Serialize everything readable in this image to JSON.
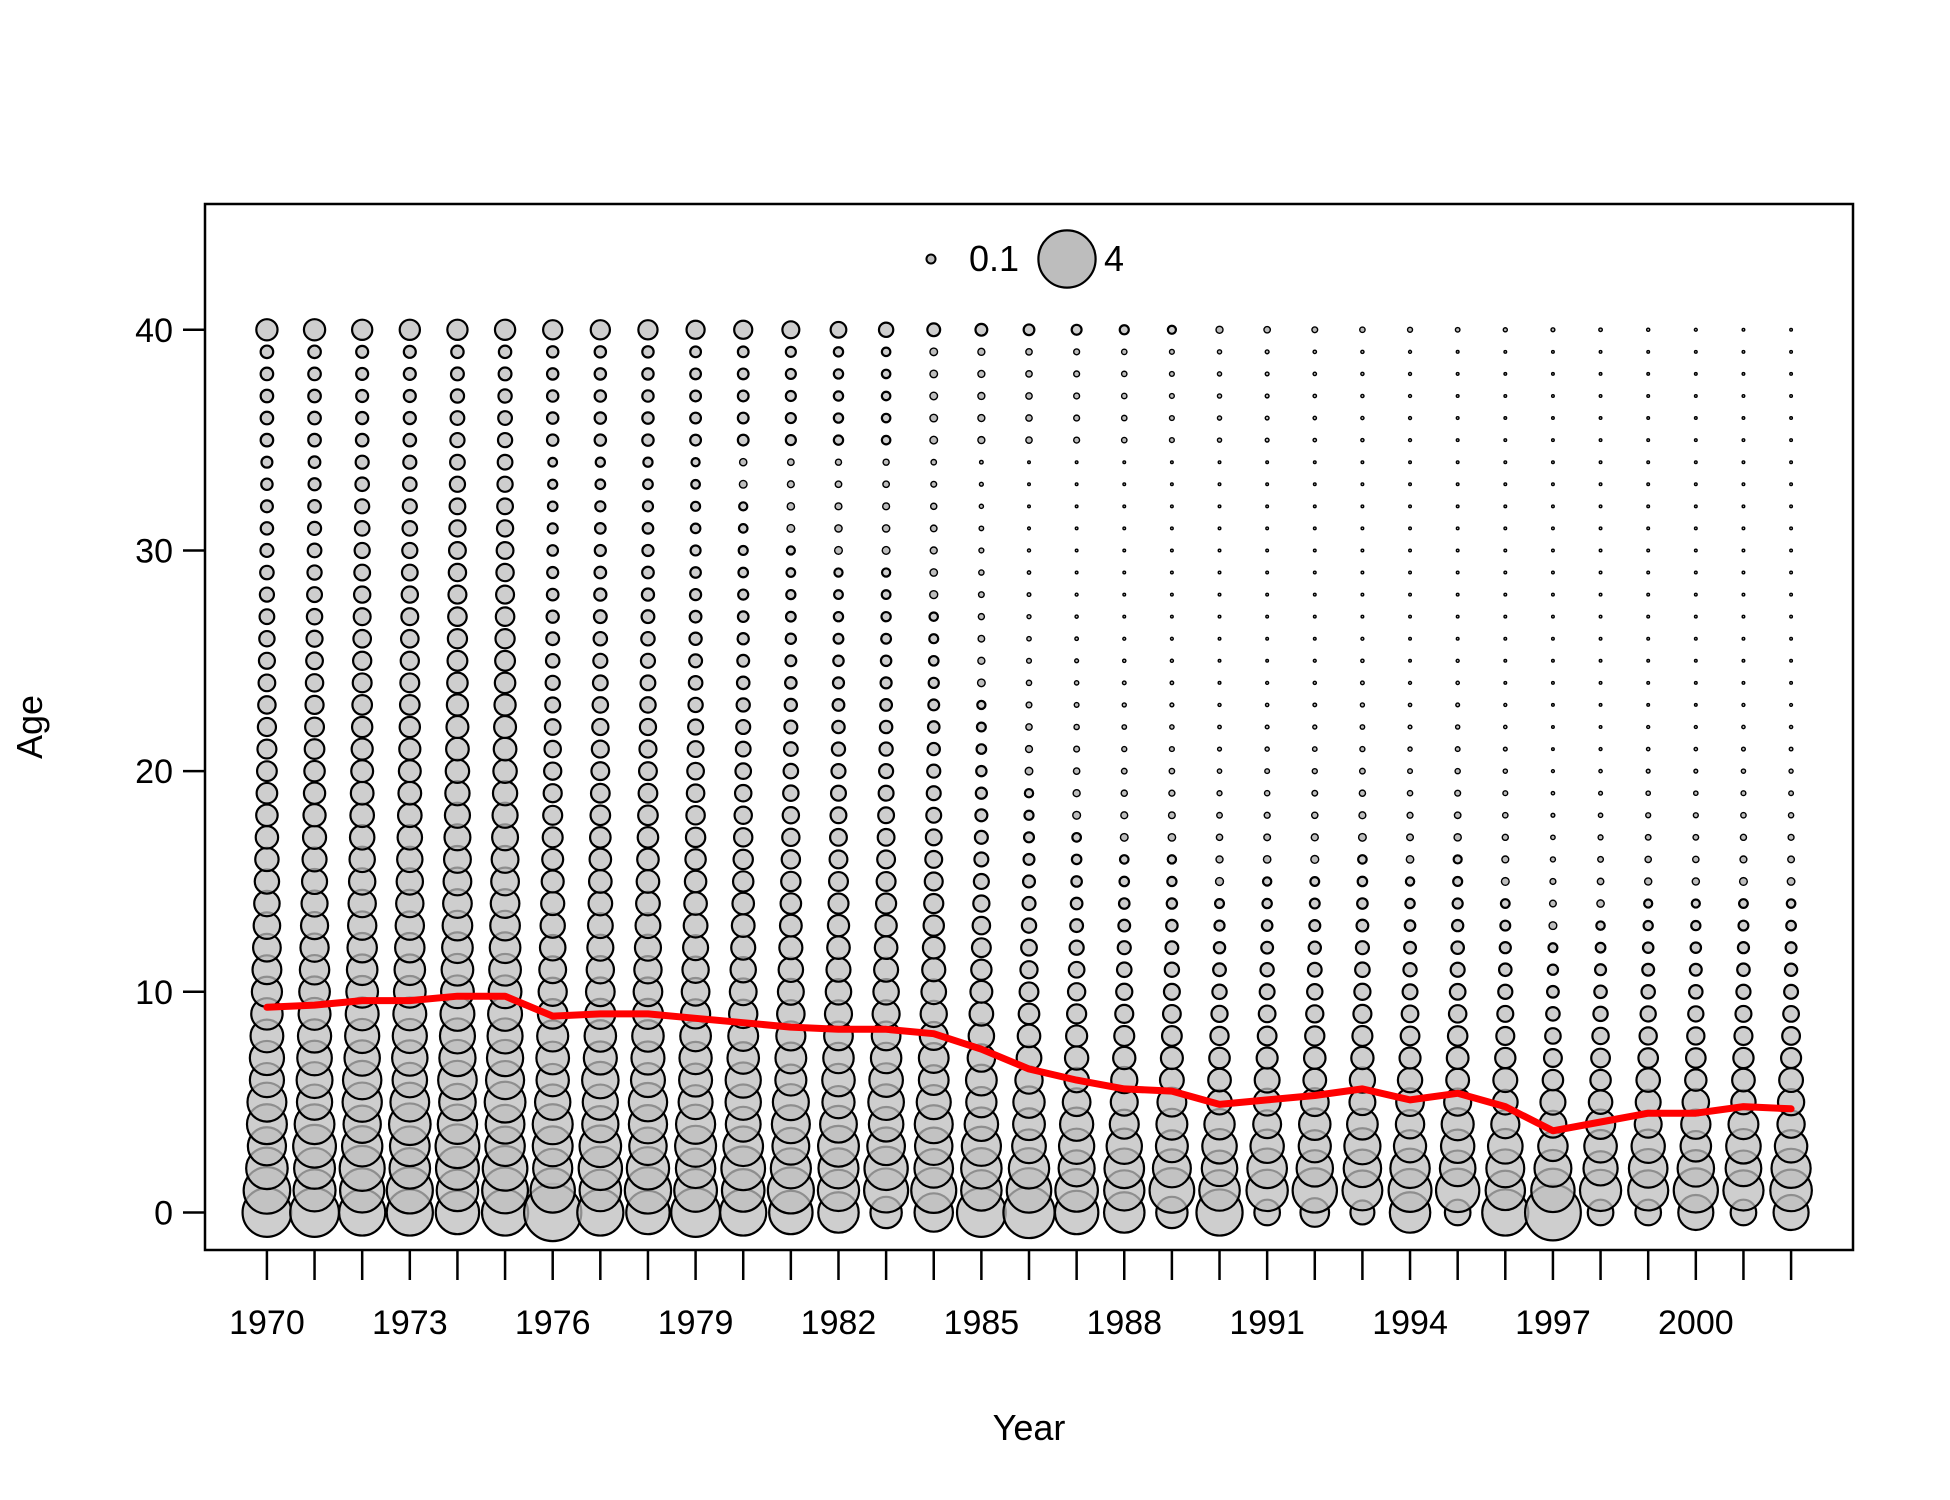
{
  "chart_data": {
    "type": "scatter",
    "subtype": "bubble",
    "title": "",
    "xlabel": "Year",
    "ylabel": "Age",
    "xlim": [
      1968.7,
      2003.3
    ],
    "ylim": [
      -1.7,
      45.7
    ],
    "x_ticks": [
      1970,
      1973,
      1976,
      1979,
      1982,
      1985,
      1988,
      1991,
      1994,
      1997,
      2000
    ],
    "y_ticks": [
      0,
      10,
      20,
      30,
      40
    ],
    "grid": false,
    "legend": {
      "position": "top-center",
      "entries": [
        {
          "label": "0.1",
          "value": 0.1
        },
        {
          "label": "4",
          "value": 4
        }
      ]
    },
    "years": [
      1970,
      1971,
      1972,
      1973,
      1974,
      1975,
      1976,
      1977,
      1978,
      1979,
      1980,
      1981,
      1982,
      1983,
      1984,
      1985,
      1986,
      1987,
      1988,
      1989,
      1990,
      1991,
      1992,
      1993,
      1994,
      1995,
      1996,
      1997,
      1998,
      1999,
      2000,
      2001,
      2002
    ],
    "ages": [
      0,
      1,
      2,
      3,
      4,
      5,
      6,
      7,
      8,
      9,
      10,
      11,
      12,
      13,
      14,
      15,
      16,
      17,
      18,
      19,
      20,
      21,
      22,
      23,
      24,
      25,
      26,
      27,
      28,
      29,
      30,
      31,
      32,
      33,
      34,
      35,
      36,
      37,
      38,
      39,
      40
    ],
    "age_0_values": [
      2.9,
      2.9,
      2.6,
      2.6,
      2.3,
      2.6,
      4.0,
      2.6,
      2.3,
      2.9,
      2.6,
      2.3,
      2.0,
      1.2,
      1.8,
      2.9,
      3.2,
      2.3,
      2.0,
      1.2,
      2.6,
      0.8,
      1.0,
      0.7,
      2.0,
      0.8,
      2.6,
      3.8,
      0.8,
      0.8,
      1.5,
      0.8,
      1.5
    ],
    "age_40_values": [
      0.55,
      0.55,
      0.5,
      0.5,
      0.5,
      0.5,
      0.45,
      0.45,
      0.45,
      0.4,
      0.4,
      0.35,
      0.3,
      0.25,
      0.2,
      0.17,
      0.14,
      0.12,
      0.1,
      0.08,
      0.06,
      0.05,
      0.04,
      0.035,
      0.03,
      0.025,
      0.02,
      0.018,
      0.015,
      0.012,
      0.01,
      0.008,
      0.006
    ],
    "mean_age_line": {
      "color": "#ff0000",
      "x": [
        1970,
        1971,
        1972,
        1973,
        1974,
        1975,
        1976,
        1977,
        1978,
        1979,
        1980,
        1981,
        1982,
        1983,
        1984,
        1985,
        1986,
        1987,
        1988,
        1989,
        1990,
        1991,
        1992,
        1993,
        1994,
        1995,
        1996,
        1997,
        1998,
        1999,
        2000,
        2001,
        2002
      ],
      "y": [
        9.3,
        9.4,
        9.6,
        9.6,
        9.8,
        9.8,
        8.9,
        9.0,
        9.0,
        8.8,
        8.6,
        8.4,
        8.3,
        8.3,
        8.1,
        7.4,
        6.5,
        6.0,
        5.6,
        5.5,
        4.9,
        5.1,
        5.3,
        5.6,
        5.1,
        5.4,
        4.8,
        3.7,
        4.1,
        4.5,
        4.5,
        4.8,
        4.7
      ]
    },
    "bubble_fill": "#bdbdbd",
    "bubble_stroke": "#000000"
  }
}
